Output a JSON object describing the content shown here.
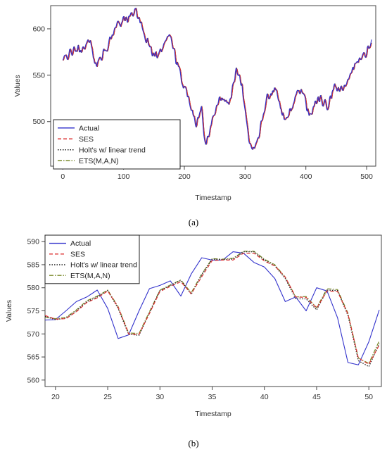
{
  "captions": {
    "a": "(a)",
    "b": "(b)"
  },
  "chart_data": [
    {
      "type": "line",
      "xlabel": "Timestamp",
      "ylabel": "Values",
      "xlim": [
        -20,
        515
      ],
      "ylim": [
        452,
        625
      ],
      "x_ticks": [
        0,
        100,
        200,
        300,
        400,
        500
      ],
      "y_ticks": [
        500,
        550,
        600
      ],
      "legend_position": "bottom-left",
      "legend": [
        {
          "name": "Actual",
          "color": "#3333cc",
          "dash": "solid"
        },
        {
          "name": "SES",
          "color": "#dd3333",
          "dash": "dashed"
        },
        {
          "name": "Holt's w/ linear trend",
          "color": "#222222",
          "dash": "dotted"
        },
        {
          "name": "ETS(M,A,N)",
          "color": "#7a8a2a",
          "dash": "dashdot"
        }
      ],
      "keypoints": {
        "x": [
          0,
          10,
          30,
          45,
          55,
          70,
          90,
          110,
          120,
          130,
          150,
          160,
          175,
          195,
          210,
          220,
          228,
          235,
          245,
          260,
          275,
          285,
          295,
          305,
          312,
          320,
          335,
          350,
          365,
          380,
          392,
          405,
          420,
          435,
          448,
          460,
          475,
          490,
          500,
          508
        ],
        "y": [
          565,
          574,
          578,
          586,
          560,
          578,
          606,
          612,
          622,
          600,
          570,
          578,
          595,
          545,
          520,
          498,
          515,
          475,
          500,
          528,
          520,
          555,
          538,
          485,
          465,
          480,
          525,
          535,
          500,
          520,
          538,
          505,
          525,
          515,
          538,
          532,
          558,
          565,
          575,
          588
        ]
      }
    },
    {
      "type": "line",
      "xlabel": "Timestamp",
      "ylabel": "Values",
      "xlim": [
        19,
        51.2
      ],
      "ylim": [
        558.6,
        591.4
      ],
      "x_ticks": [
        20,
        25,
        30,
        35,
        40,
        45,
        50
      ],
      "y_ticks": [
        560,
        565,
        570,
        575,
        580,
        585,
        590
      ],
      "legend_position": "top-left",
      "legend": [
        {
          "name": "Actual",
          "color": "#3333cc",
          "dash": "solid"
        },
        {
          "name": "SES",
          "color": "#dd3333",
          "dash": "dashed"
        },
        {
          "name": "Holt's w/ linear trend",
          "color": "#222222",
          "dash": "dotted"
        },
        {
          "name": "ETS(M,A,N)",
          "color": "#7a8a2a",
          "dash": "dashdot"
        }
      ],
      "x": [
        19,
        20,
        21,
        22,
        23,
        24,
        25,
        26,
        27,
        28,
        29,
        30,
        31,
        32,
        33,
        34,
        35,
        36,
        37,
        38,
        39,
        40,
        41,
        42,
        43,
        44,
        45,
        46,
        47,
        48,
        49,
        50,
        51
      ],
      "series": [
        {
          "name": "Actual",
          "values": [
            573.0,
            573.1,
            575.0,
            577.0,
            578.0,
            579.5,
            575.5,
            569.0,
            569.8,
            575.0,
            579.8,
            580.5,
            581.5,
            578.2,
            583.0,
            586.5,
            586.0,
            586.0,
            587.8,
            587.5,
            585.5,
            584.5,
            582.0,
            577.0,
            578.0,
            575.0,
            580.0,
            579.3,
            573.5,
            563.8,
            563.3,
            568.3,
            575.2
          ]
        },
        {
          "name": "SES",
          "values": [
            574.0,
            573.2,
            573.3,
            574.8,
            576.8,
            577.8,
            579.3,
            575.8,
            570.0,
            569.9,
            574.4,
            579.2,
            580.3,
            581.3,
            578.7,
            582.4,
            585.9,
            586.0,
            586.0,
            587.5,
            587.5,
            585.8,
            584.7,
            582.3,
            578.0,
            577.9,
            575.6,
            579.3,
            579.2,
            574.3,
            564.8,
            563.4,
            567.6
          ]
        },
        {
          "name": "Holt's w/ linear trend",
          "values": [
            573.8,
            573.1,
            573.4,
            575.0,
            577.0,
            578.0,
            579.4,
            575.5,
            569.9,
            569.7,
            574.6,
            579.4,
            580.5,
            581.6,
            578.6,
            582.8,
            586.2,
            586.1,
            586.2,
            587.8,
            587.8,
            586.0,
            584.8,
            582.0,
            577.6,
            577.6,
            575.2,
            579.5,
            579.4,
            574.0,
            564.2,
            562.9,
            567.9
          ]
        },
        {
          "name": "ETS(M,A,N)",
          "values": [
            573.6,
            573.3,
            573.6,
            575.2,
            577.2,
            578.2,
            579.5,
            575.9,
            570.2,
            570.1,
            574.8,
            579.5,
            580.6,
            581.7,
            578.9,
            583.0,
            586.3,
            586.2,
            586.4,
            587.9,
            587.9,
            586.2,
            585.0,
            582.3,
            578.0,
            578.1,
            575.7,
            579.8,
            579.6,
            574.5,
            564.8,
            563.6,
            568.5
          ]
        }
      ]
    }
  ]
}
